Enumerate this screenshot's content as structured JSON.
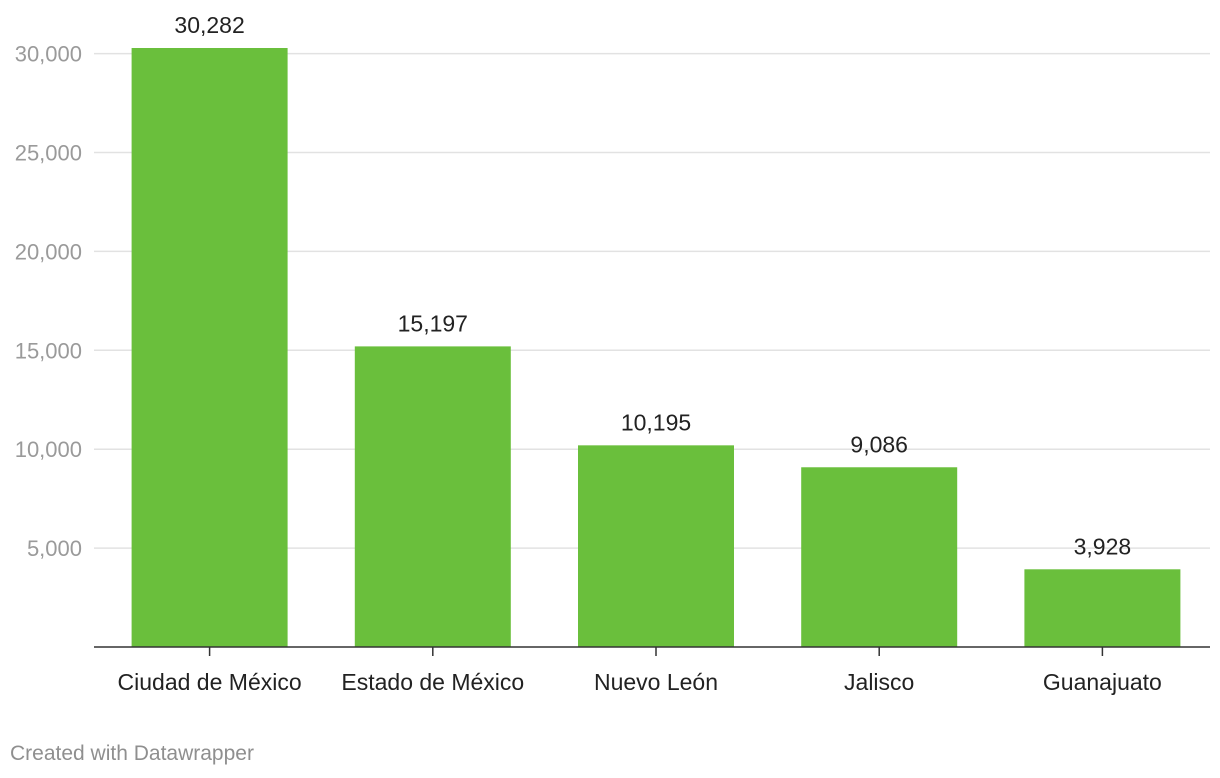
{
  "chart_data": {
    "type": "bar",
    "categories": [
      "Ciudad de México",
      "Estado de México",
      "Nuevo León",
      "Jalisco",
      "Guanajuato"
    ],
    "values": [
      30282,
      15197,
      10195,
      9086,
      3928
    ],
    "value_labels": [
      "30,282",
      "15,197",
      "10,195",
      "9,086",
      "3,928"
    ],
    "yticks": [
      5000,
      10000,
      15000,
      20000,
      25000,
      30000
    ],
    "ytick_labels": [
      "5,000",
      "10,000",
      "15,000",
      "20,000",
      "25,000",
      "30,000"
    ],
    "ylim": [
      0,
      30282
    ],
    "bar_color": "#6abf3c",
    "grid": true
  },
  "footer": {
    "credit": "Created with Datawrapper"
  }
}
